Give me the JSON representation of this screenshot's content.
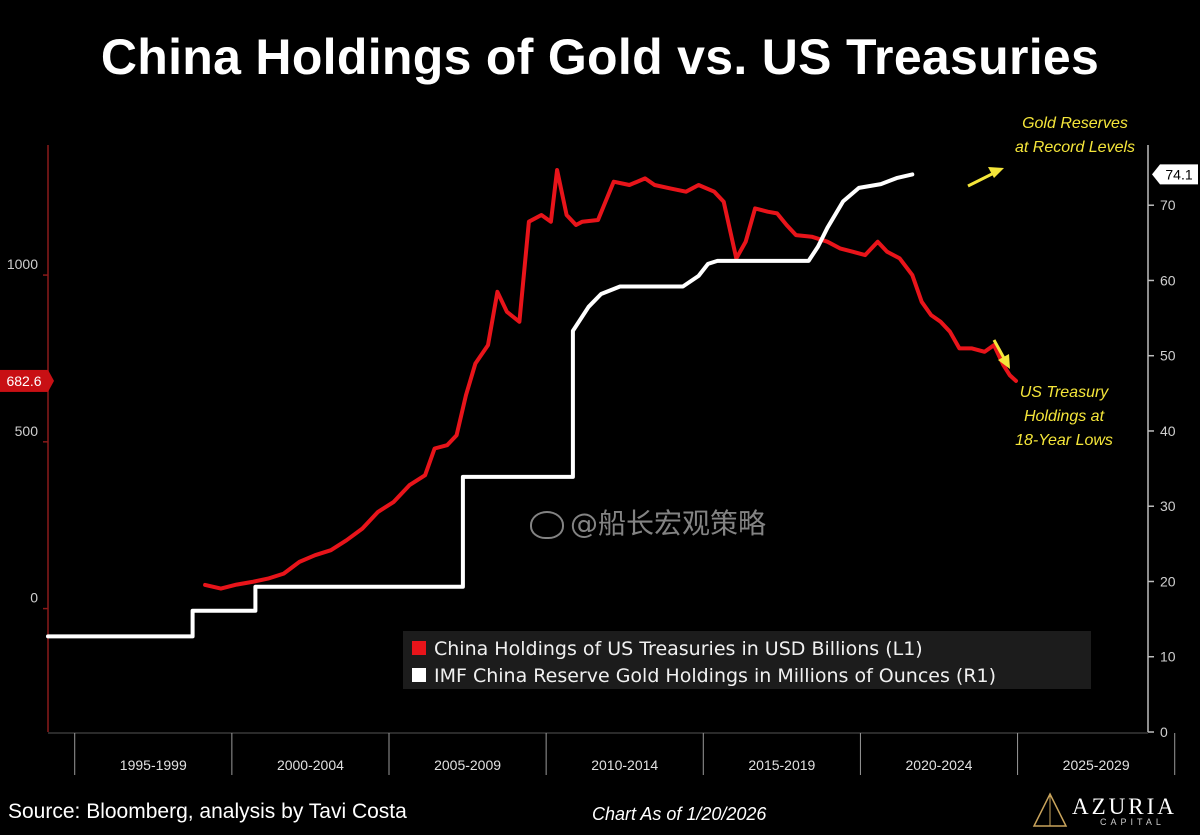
{
  "title": "China Holdings of Gold vs. US Treasuries",
  "footer": {
    "source": "Source: Bloomberg, analysis by Tavi Costa",
    "as_of": "Chart As of 1/20/2026",
    "brand": "AZURIA",
    "brand_sub": "CAPITAL"
  },
  "watermark": "@船长宏观策略",
  "annotations": {
    "gold_line1": "Gold Reserves",
    "gold_line2": "at Record Levels",
    "ust_line1": "US Treasury",
    "ust_line2": "Holdings at",
    "ust_line3": "18-Year Lows"
  },
  "colors": {
    "treasuries": "#e8141a",
    "gold": "#ffffff",
    "annotation": "#f5e63a",
    "background": "#000000"
  },
  "chart_data": {
    "type": "line",
    "title": "China Holdings of Gold vs. US Treasuries",
    "x_range": [
      1995,
      2030
    ],
    "x_tick_labels": [
      "1995-1999",
      "2000-2004",
      "2005-2009",
      "2010-2014",
      "2015-2019",
      "2020-2024",
      "2025-2029"
    ],
    "y_left": {
      "ticks": [
        0,
        500,
        1000
      ],
      "tick_labels": [
        "0",
        "500",
        "1000"
      ],
      "range": [
        -370,
        1390
      ],
      "last_value_label": "682.6"
    },
    "y_right": {
      "ticks": [
        0,
        10,
        20,
        30,
        40,
        50,
        60,
        70
      ],
      "tick_labels": [
        "0",
        "10",
        "20",
        "30",
        "40",
        "50",
        "60",
        "70"
      ],
      "range": [
        0,
        78
      ],
      "last_value_label": "74.1"
    },
    "series": [
      {
        "name": "China Holdings of US Treasuries in USD Billions (L1)",
        "axis": "left",
        "color": "#e8141a",
        "points": [
          [
            2000.0,
            71
          ],
          [
            2000.5,
            60
          ],
          [
            2001.0,
            72
          ],
          [
            2001.5,
            80
          ],
          [
            2002.0,
            90
          ],
          [
            2002.5,
            105
          ],
          [
            2003.0,
            140
          ],
          [
            2003.5,
            160
          ],
          [
            2004.0,
            175
          ],
          [
            2004.5,
            205
          ],
          [
            2005.0,
            240
          ],
          [
            2005.5,
            290
          ],
          [
            2006.0,
            320
          ],
          [
            2006.5,
            370
          ],
          [
            2007.0,
            400
          ],
          [
            2007.3,
            480
          ],
          [
            2007.7,
            490
          ],
          [
            2008.0,
            520
          ],
          [
            2008.3,
            640
          ],
          [
            2008.6,
            735
          ],
          [
            2009.0,
            790
          ],
          [
            2009.3,
            950
          ],
          [
            2009.6,
            890
          ],
          [
            2010.0,
            860
          ],
          [
            2010.3,
            1160
          ],
          [
            2010.7,
            1180
          ],
          [
            2011.0,
            1160
          ],
          [
            2011.2,
            1315
          ],
          [
            2011.5,
            1180
          ],
          [
            2011.8,
            1150
          ],
          [
            2012.0,
            1160
          ],
          [
            2012.5,
            1165
          ],
          [
            2013.0,
            1280
          ],
          [
            2013.5,
            1270
          ],
          [
            2014.0,
            1290
          ],
          [
            2014.3,
            1270
          ],
          [
            2014.8,
            1260
          ],
          [
            2015.3,
            1250
          ],
          [
            2015.7,
            1270
          ],
          [
            2016.2,
            1250
          ],
          [
            2016.5,
            1220
          ],
          [
            2016.9,
            1050
          ],
          [
            2017.2,
            1100
          ],
          [
            2017.5,
            1200
          ],
          [
            2017.9,
            1190
          ],
          [
            2018.2,
            1185
          ],
          [
            2018.5,
            1150
          ],
          [
            2018.8,
            1120
          ],
          [
            2019.3,
            1115
          ],
          [
            2019.8,
            1100
          ],
          [
            2020.2,
            1080
          ],
          [
            2020.6,
            1070
          ],
          [
            2021.0,
            1060
          ],
          [
            2021.4,
            1100
          ],
          [
            2021.7,
            1070
          ],
          [
            2022.1,
            1050
          ],
          [
            2022.5,
            1000
          ],
          [
            2022.8,
            920
          ],
          [
            2023.1,
            880
          ],
          [
            2023.4,
            860
          ],
          [
            2023.7,
            830
          ],
          [
            2024.0,
            780
          ],
          [
            2024.4,
            780
          ],
          [
            2024.8,
            770
          ],
          [
            2025.1,
            790
          ],
          [
            2025.4,
            730
          ],
          [
            2025.6,
            700
          ],
          [
            2025.8,
            682.6
          ]
        ]
      },
      {
        "name": "IMF China Reserve Gold Holdings in Millions of Ounces (R1)",
        "axis": "right",
        "color": "#ffffff",
        "points": [
          [
            1995.0,
            12.7
          ],
          [
            1999.3,
            12.7
          ],
          [
            1999.6,
            12.7
          ],
          [
            1999.6,
            16.1
          ],
          [
            2001.6,
            16.1
          ],
          [
            2001.6,
            19.3
          ],
          [
            2008.2,
            19.3
          ],
          [
            2008.2,
            33.9
          ],
          [
            2011.7,
            33.9
          ],
          [
            2011.7,
            53.3
          ],
          [
            2012.2,
            56.5
          ],
          [
            2012.6,
            58.2
          ],
          [
            2013.2,
            59.2
          ],
          [
            2015.2,
            59.2
          ],
          [
            2015.7,
            60.6
          ],
          [
            2016.0,
            62.2
          ],
          [
            2016.3,
            62.6
          ],
          [
            2017.5,
            62.6
          ],
          [
            2018.0,
            62.6
          ],
          [
            2019.2,
            62.6
          ],
          [
            2019.5,
            64.5
          ],
          [
            2019.8,
            67.0
          ],
          [
            2020.3,
            70.5
          ],
          [
            2020.8,
            72.3
          ],
          [
            2021.5,
            72.8
          ],
          [
            2022.0,
            73.6
          ],
          [
            2022.5,
            74.1
          ]
        ]
      }
    ],
    "legend": {
      "position": "bottom-right",
      "entries": [
        {
          "label": "China Holdings of US Treasuries in USD Billions (L1)",
          "color": "#e8141a"
        },
        {
          "label": "IMF China Reserve Gold Holdings in Millions of Ounces (R1)",
          "color": "#ffffff"
        }
      ]
    }
  }
}
